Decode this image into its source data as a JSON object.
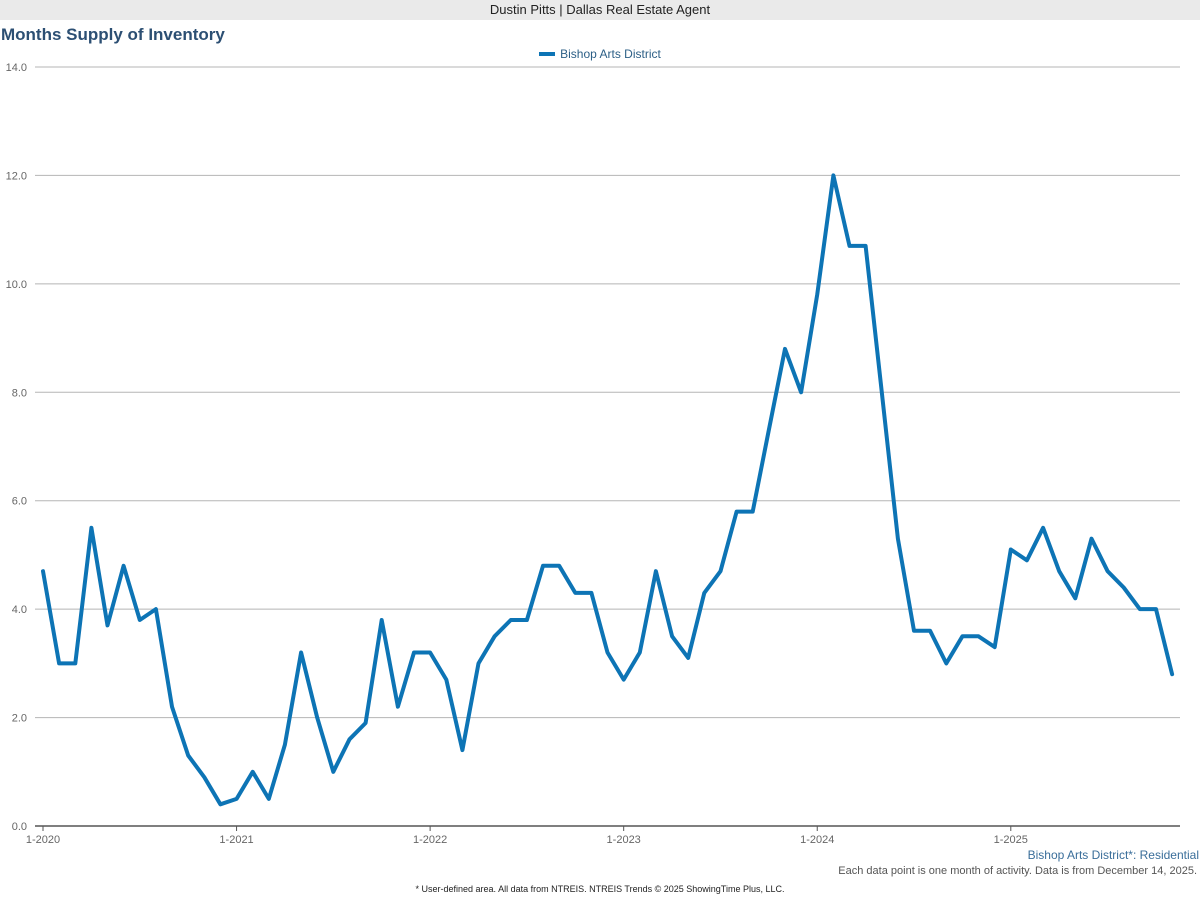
{
  "header": {
    "agent_label": "Dustin Pitts | Dallas Real Estate Agent"
  },
  "colors": {
    "series_line": "#0d74b5",
    "title": "#2c4f73",
    "grid": "#b5b5b5",
    "axis_text": "#666666"
  },
  "chart_data": {
    "type": "line",
    "title": "Months Supply of Inventory",
    "xlabel": "",
    "ylabel": "",
    "ylim": [
      0,
      14
    ],
    "yticks": [
      "0.0",
      "2.0",
      "4.0",
      "6.0",
      "8.0",
      "10.0",
      "12.0",
      "14.0"
    ],
    "xticks": [
      "1-2020",
      "1-2021",
      "1-2022",
      "1-2023",
      "1-2024",
      "1-2025"
    ],
    "x_start": "1-2020",
    "grid": true,
    "legend": "top-center",
    "series": [
      {
        "name": "Bishop Arts District",
        "values": [
          4.7,
          3.0,
          3.0,
          5.5,
          3.7,
          4.8,
          3.8,
          4.0,
          2.2,
          1.3,
          0.9,
          0.4,
          0.5,
          1.0,
          0.5,
          1.5,
          3.2,
          2.0,
          1.0,
          1.6,
          1.9,
          3.8,
          2.2,
          3.2,
          3.2,
          2.7,
          1.4,
          3.0,
          3.5,
          3.8,
          3.8,
          4.8,
          4.8,
          4.3,
          4.3,
          3.2,
          2.7,
          3.2,
          4.7,
          3.5,
          3.1,
          4.3,
          4.7,
          5.8,
          5.8,
          7.3,
          8.8,
          8.0,
          9.8,
          12.0,
          10.7,
          10.7,
          8.0,
          5.3,
          3.6,
          3.6,
          3.0,
          3.5,
          3.5,
          3.3,
          5.1,
          4.9,
          5.5,
          4.7,
          4.2,
          5.3,
          4.7,
          4.4,
          4.0,
          4.0,
          2.8
        ]
      }
    ],
    "series_note": "Bishop Arts District*: Residential",
    "data_note": "Each data point is one month of activity. Data is from December 14, 2025."
  },
  "footer": {
    "text": "* User-defined area. All data from NTREIS. NTREIS Trends © 2025 ShowingTime Plus, LLC."
  }
}
